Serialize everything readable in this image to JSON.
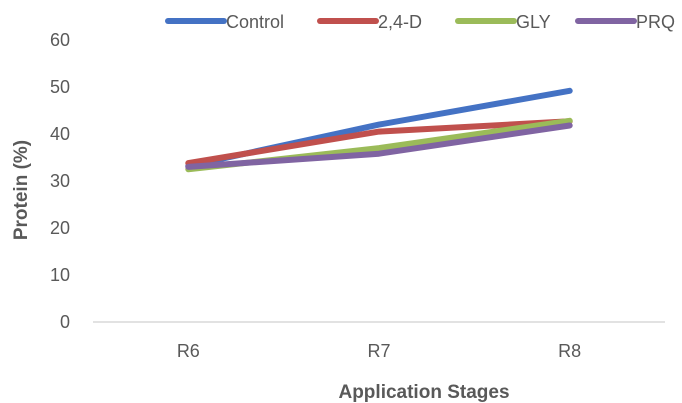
{
  "chart_data": {
    "type": "line",
    "title": "",
    "xlabel": "Application Stages",
    "ylabel": "Protein (%)",
    "categories": [
      "R6",
      "R7",
      "R8"
    ],
    "ylim": [
      0,
      60
    ],
    "yticks": [
      "0",
      "10",
      "20",
      "30",
      "40",
      "50",
      "60"
    ],
    "grid": false,
    "legend_position": "top",
    "series": [
      {
        "name": "Control",
        "color": "#4472C4",
        "values": [
          33.2,
          42.0,
          49.2
        ]
      },
      {
        "name": "2,4-D",
        "color": "#C0504D",
        "values": [
          33.8,
          40.5,
          42.7
        ]
      },
      {
        "name": "GLY",
        "color": "#9BBB59",
        "values": [
          32.5,
          37.0,
          42.8
        ]
      },
      {
        "name": "PRQ",
        "color": "#8064A2",
        "values": [
          33.0,
          35.8,
          41.8
        ]
      }
    ]
  }
}
